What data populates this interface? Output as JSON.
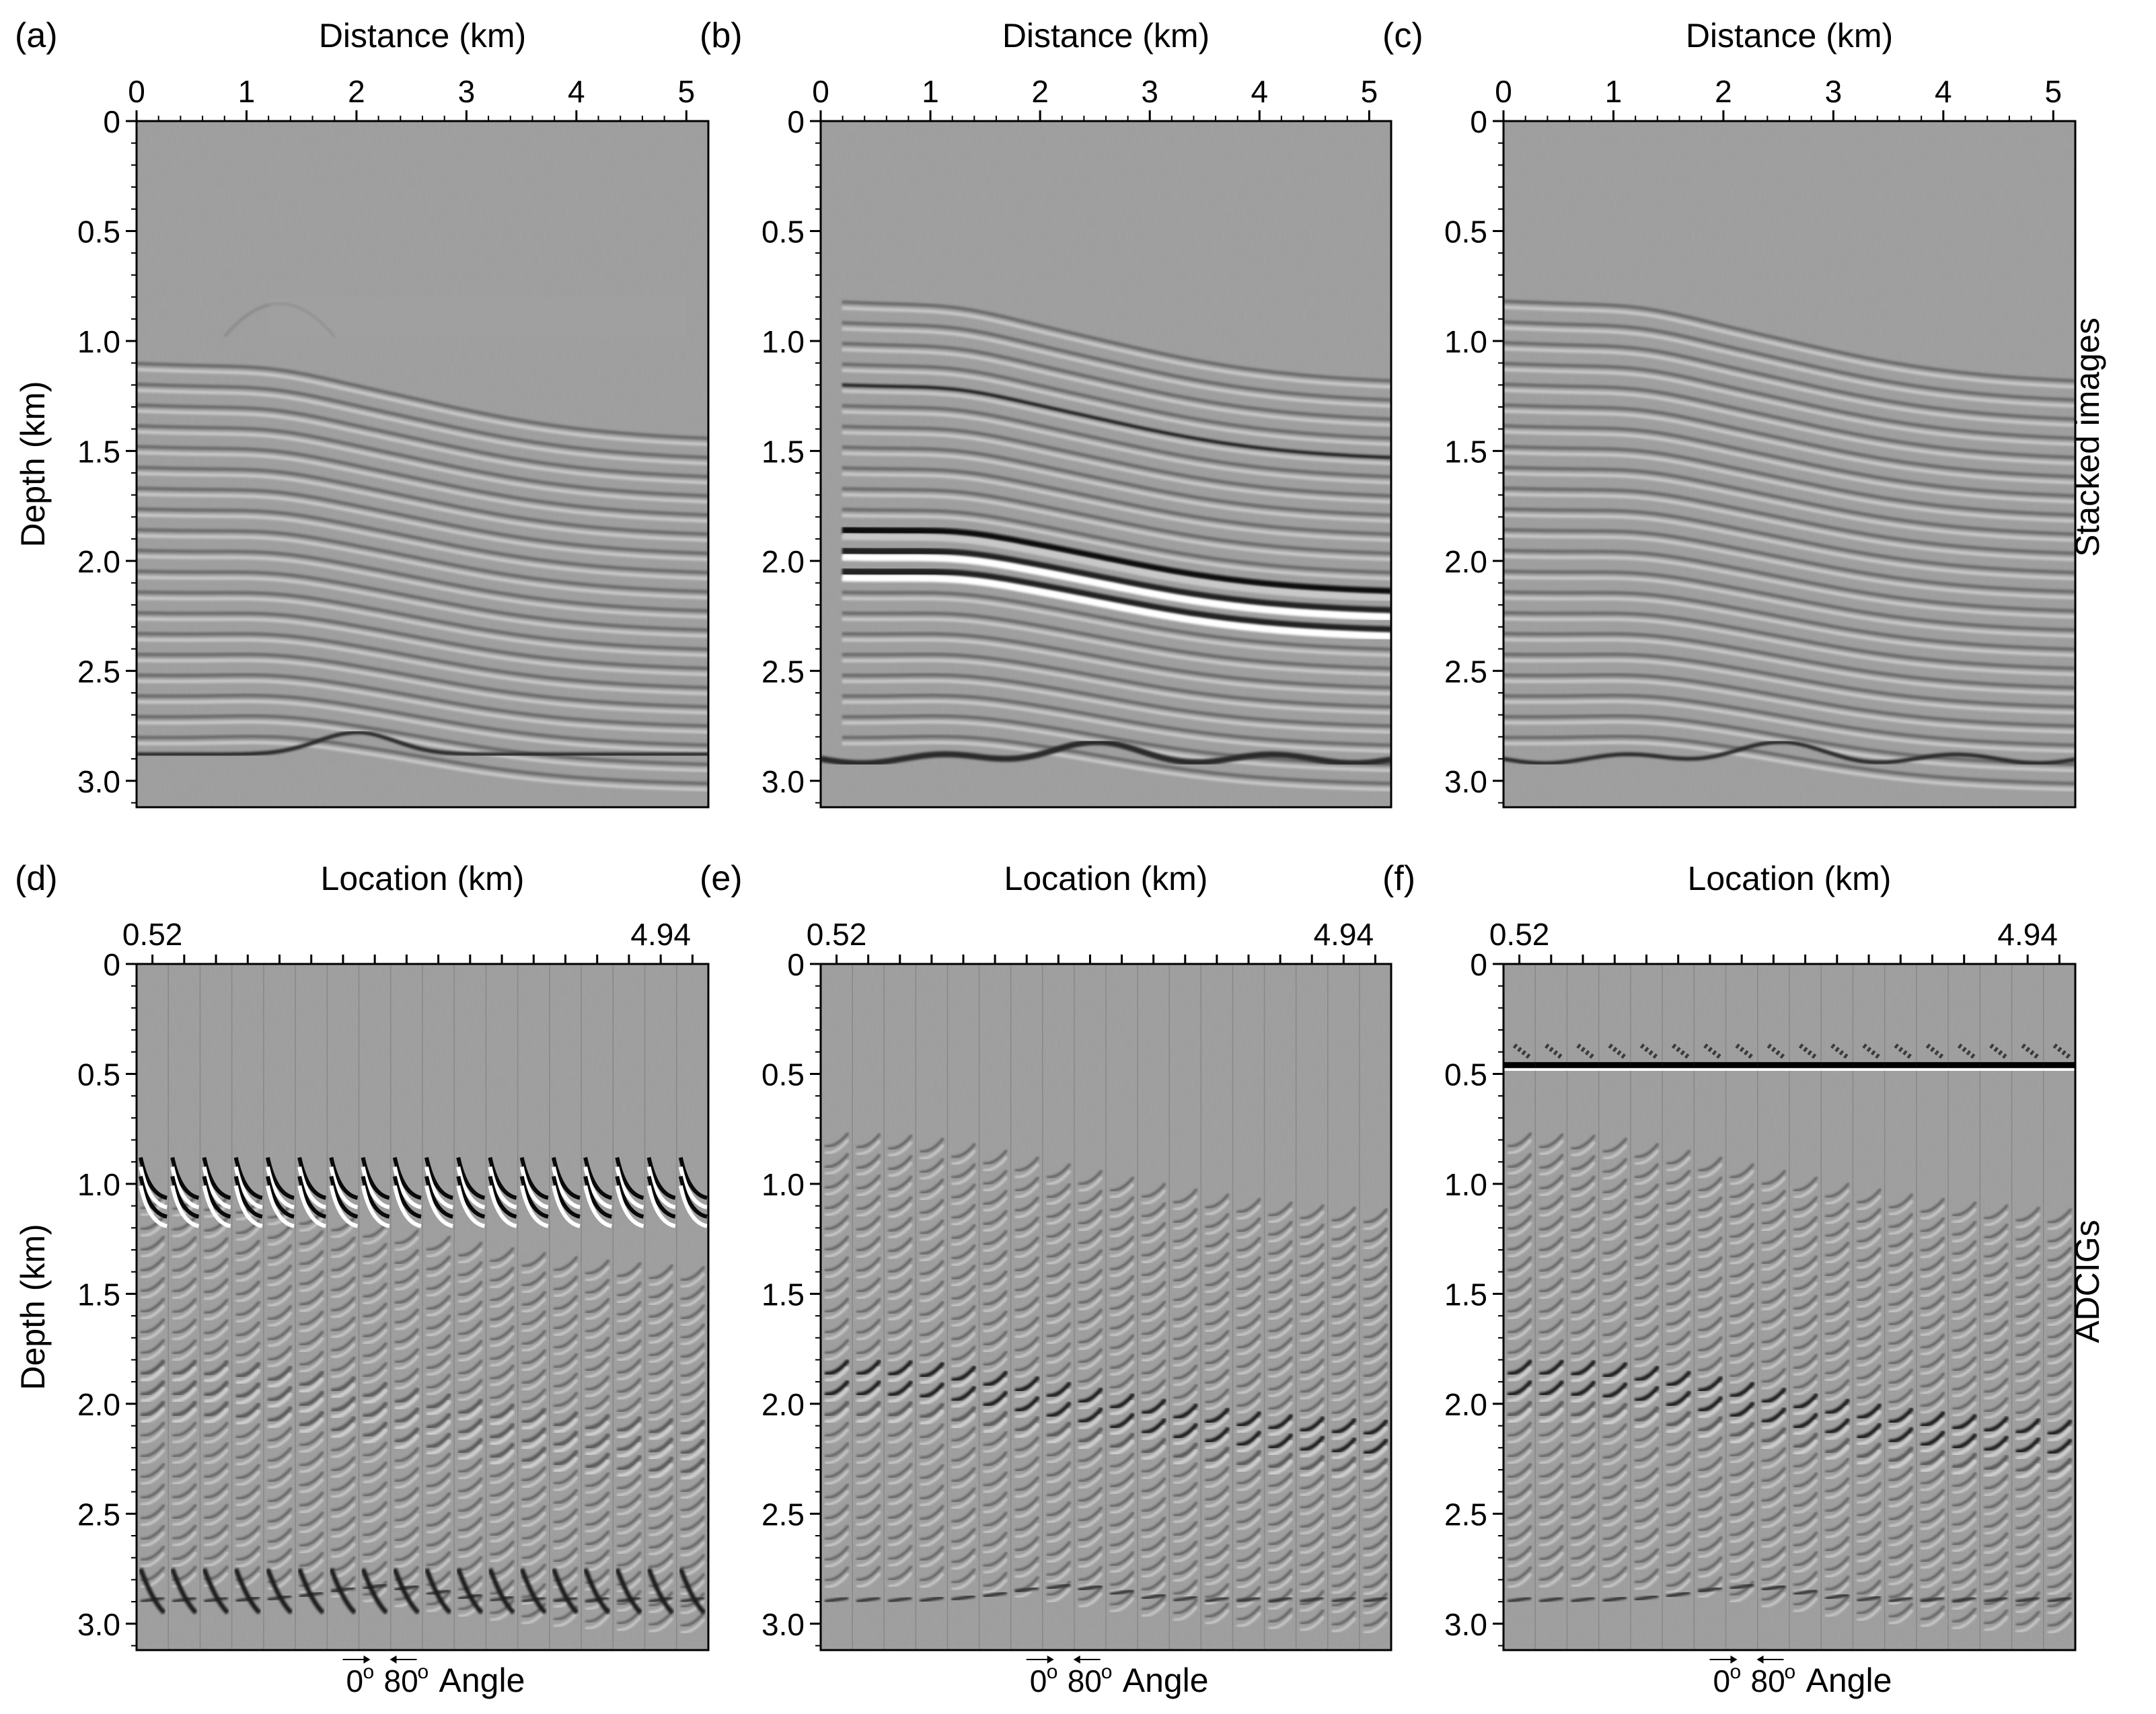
{
  "figure": {
    "row_labels": [
      "Stacked images",
      "ADCIGs"
    ],
    "panels": [
      {
        "label": "(a)",
        "xlabel": "Distance (km)",
        "ylabel": "Depth (km)",
        "kind": "stack",
        "variant": "a"
      },
      {
        "label": "(b)",
        "xlabel": "Distance (km)",
        "ylabel": "",
        "kind": "stack",
        "variant": "b"
      },
      {
        "label": "(c)",
        "xlabel": "Distance (km)",
        "ylabel": "",
        "kind": "stack",
        "variant": "c"
      },
      {
        "label": "(d)",
        "xlabel": "Location (km)",
        "ylabel": "Depth (km)",
        "kind": "adcig",
        "variant": "a"
      },
      {
        "label": "(e)",
        "xlabel": "Location (km)",
        "ylabel": "",
        "kind": "adcig",
        "variant": "b"
      },
      {
        "label": "(f)",
        "xlabel": "Location (km)",
        "ylabel": "",
        "kind": "adcig",
        "variant": "c"
      }
    ],
    "angle_annotation": {
      "start": "0",
      "end": "80",
      "unit": "o",
      "label": "Angle"
    }
  },
  "chart_data": {
    "type": "heatmap",
    "description_of_axes": "seismic migrated images, depth vs distance",
    "distance_axis": {
      "label": "Distance (km)",
      "range": [
        0,
        5.2
      ],
      "ticks": [
        0,
        1,
        2,
        3,
        4,
        5
      ],
      "tick_labels": [
        "0",
        "1",
        "2",
        "3",
        "4",
        "5"
      ]
    },
    "location_axis": {
      "label": "Location (km)",
      "range": [
        0.52,
        4.94
      ],
      "end_labels": [
        "0.52",
        "4.94"
      ],
      "gather_count": 18
    },
    "depth_axis": {
      "label": "Depth (km)",
      "range": [
        0,
        3.12
      ],
      "ticks": [
        0,
        0.5,
        1.0,
        1.5,
        2.0,
        2.5,
        3.0
      ],
      "tick_labels": [
        "0",
        "0.5",
        "1.0",
        "1.5",
        "2.0",
        "2.5",
        "3.0"
      ]
    },
    "angle_range_deg": [
      0,
      80
    ],
    "reflectors": {
      "water_bottom_panel_a_km": 1.0,
      "flat_reflector_panel_c_km": 0.47,
      "top_reflector_apex_km": 0.8,
      "strong_reflector_km": [
        1.9,
        2.05
      ],
      "deep_reflector_km": 2.9
    }
  }
}
